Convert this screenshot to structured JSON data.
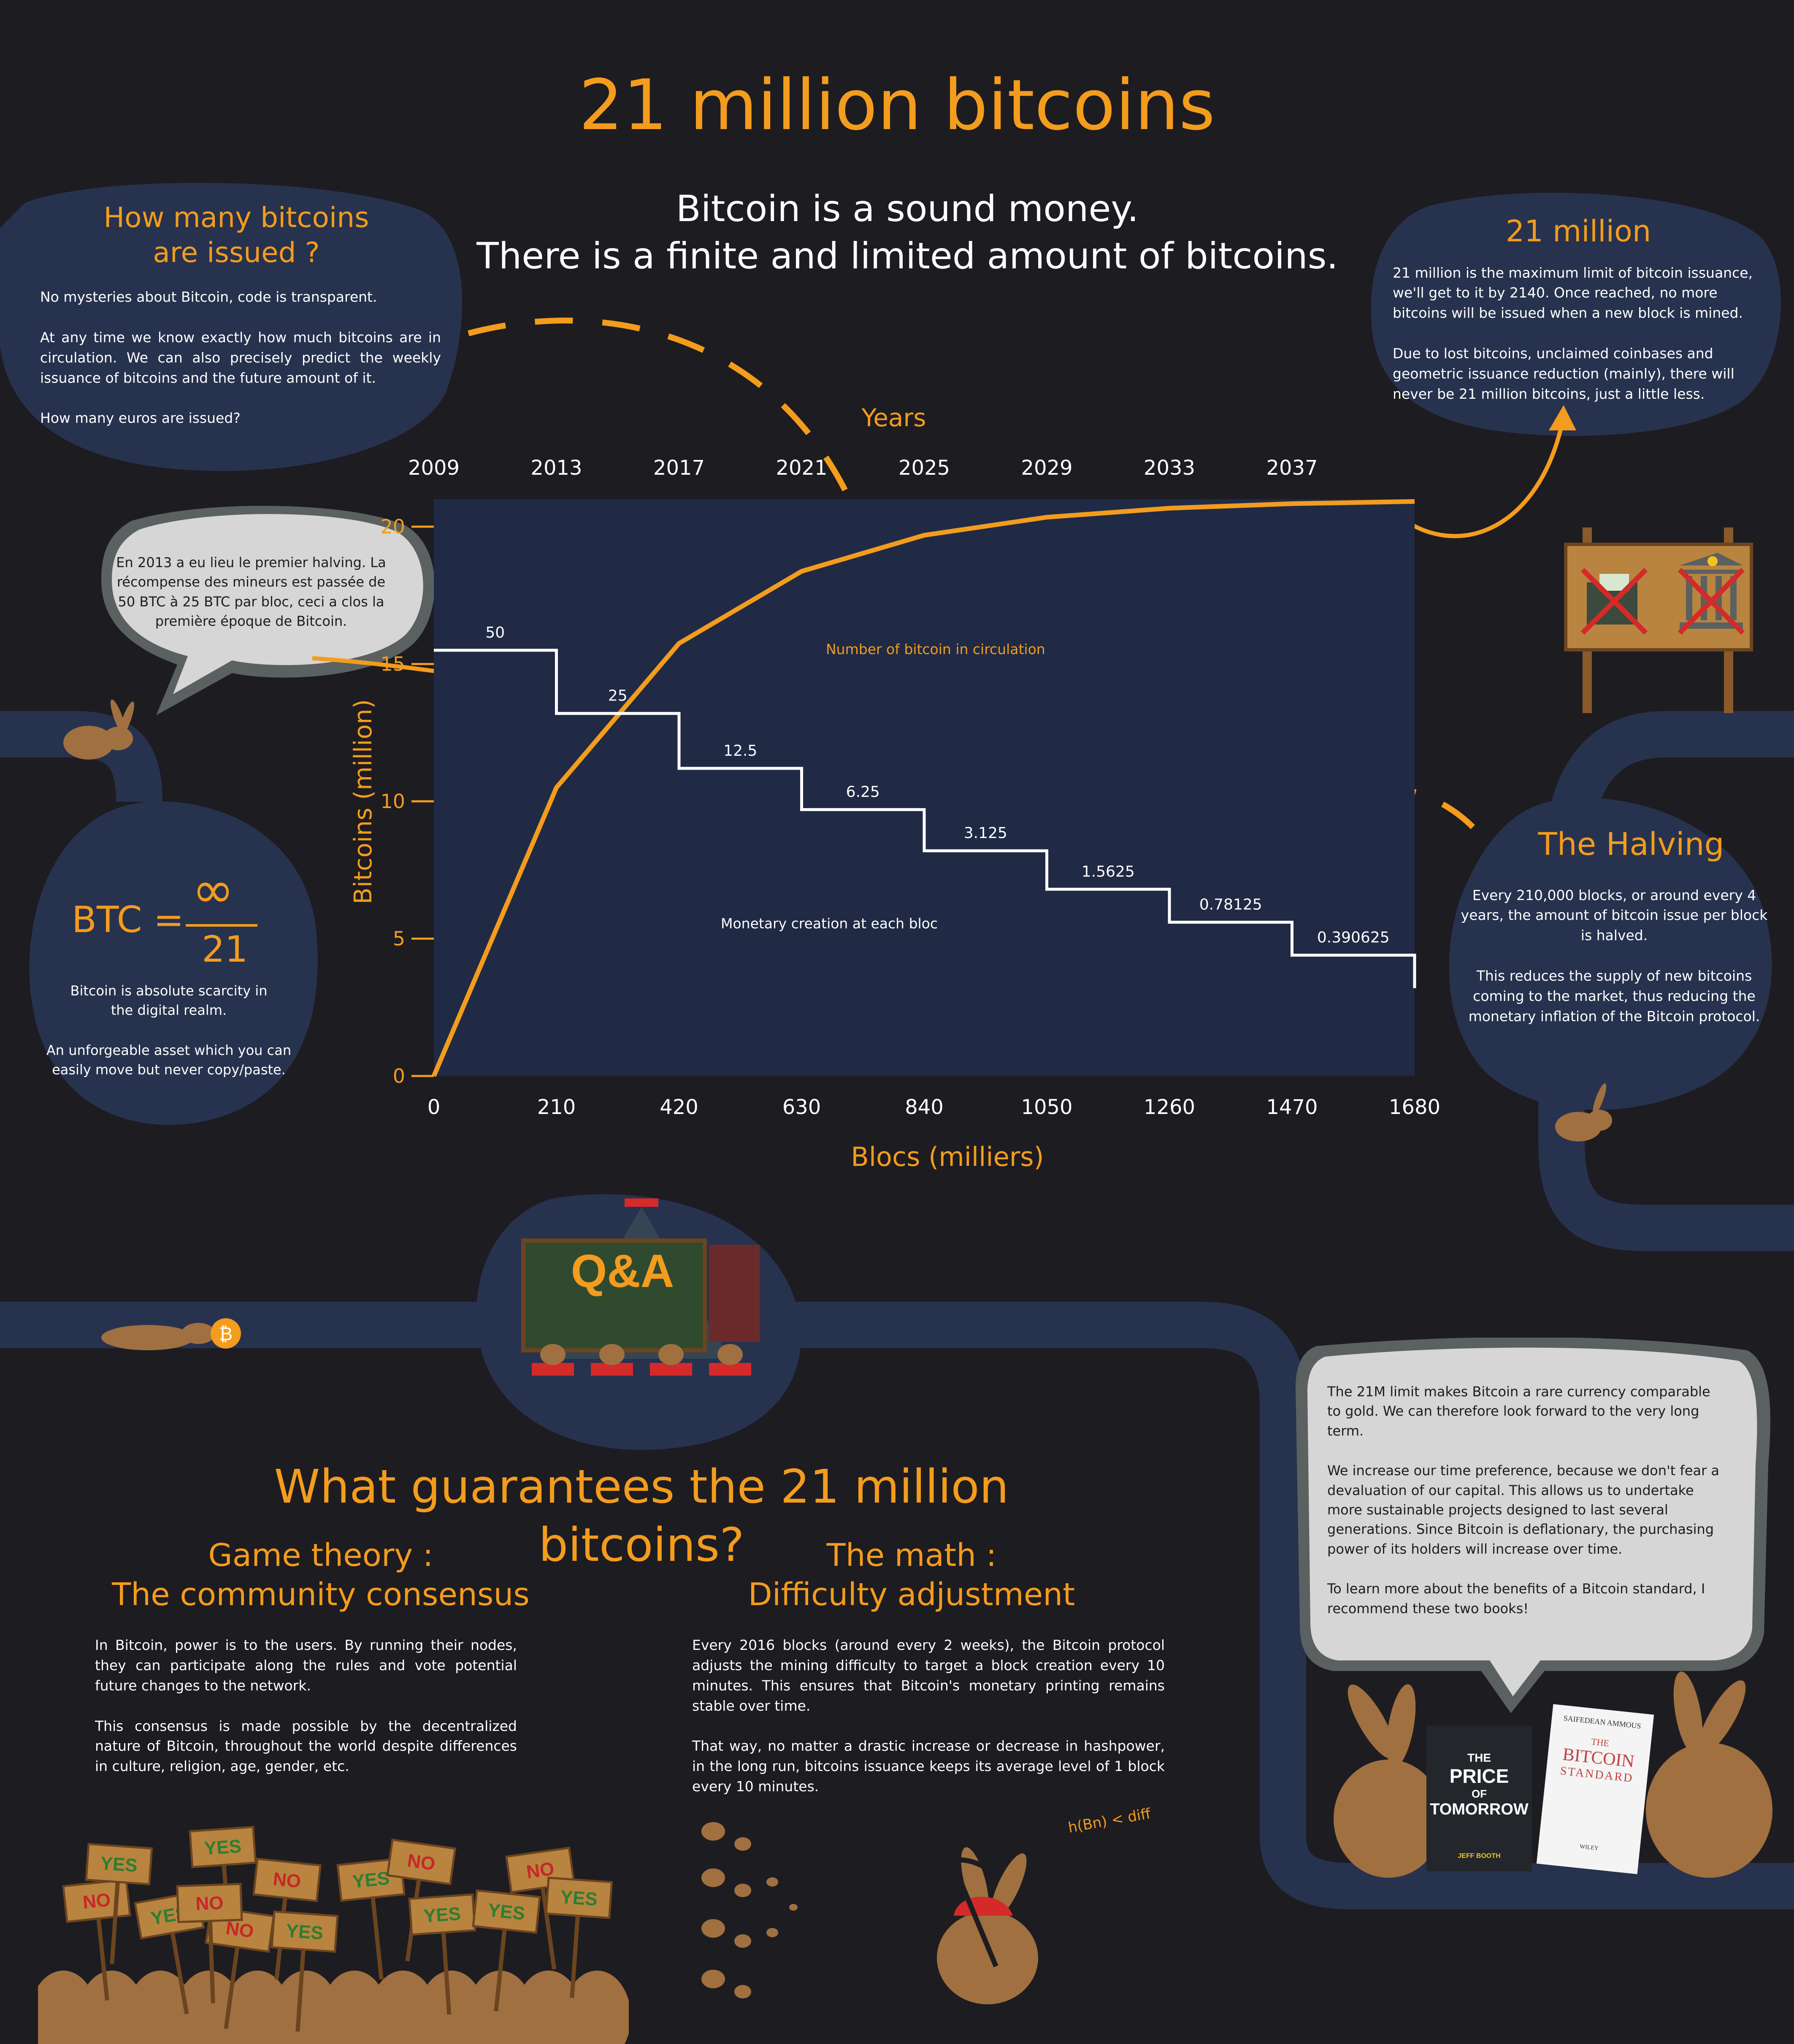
{
  "title": "21 million bitcoins",
  "subtitle_line1": "Bitcoin is a sound money.",
  "subtitle_line2": "There is a finite and limited amount of bitcoins.",
  "issued": {
    "heading_line1": "How many bitcoins",
    "heading_line2": "are issued ?",
    "p1": "No mysteries about Bitcoin, code is transparent.",
    "p2": "At any time we know exactly how much bitcoins are in circulation. We can also precisely predict the weekly issuance of bitcoins and the future amount of it.",
    "p3": "How many euros are issued?"
  },
  "million": {
    "heading": "21 million",
    "p1": "21 million is the maximum limit of bitcoin issuance, we'll get to it by 2140. Once reached, no more bitcoins will be issued when a new block is mined.",
    "p2": "Due to lost bitcoins, unclaimed coinbases and geometric issuance reduction (mainly), there will never be 21 million bitcoins, just a little less."
  },
  "first_halving_bubble": "En 2013 a eu lieu le premier halving. La récompense des mineurs est passée de 50 BTC à 25 BTC par bloc, ceci a clos la première époque de Bitcoin.",
  "btc_formula": {
    "lhs": "BTC =",
    "numerator": "∞",
    "denominator": "21",
    "p1": "Bitcoin is absolute scarcity in the digital realm.",
    "p2": "An unforgeable asset which you can easily move but never copy/paste."
  },
  "halving": {
    "heading": "The Halving",
    "p1": "Every 210,000 blocks, or around every 4 years, the amount of bitcoin issue per block is halved.",
    "p2": "This reduces the supply of new bitcoins coming to the market, thus reducing the monetary inflation of the Bitcoin protocol."
  },
  "chart_data": {
    "type": "line",
    "top_axis_label": "Years",
    "years": [
      "2009",
      "2013",
      "2017",
      "2021",
      "2025",
      "2029",
      "2033",
      "2037"
    ],
    "xlabel": "Blocs (milliers)",
    "ylabel": "Bitcoins (million)",
    "x_ticks": [
      0,
      210,
      420,
      630,
      840,
      1050,
      1260,
      1470,
      1680
    ],
    "y_ticks": [
      0,
      5,
      10,
      15,
      20
    ],
    "xlim": [
      0,
      1680
    ],
    "ylim": [
      0,
      21
    ],
    "series": [
      {
        "name": "Number of bitcoin in circulation",
        "color": "#f39c1d",
        "x": [
          0,
          210,
          420,
          630,
          840,
          1050,
          1260,
          1470,
          1680
        ],
        "y": [
          0,
          10.5,
          15.75,
          18.375,
          19.6875,
          20.34375,
          20.671875,
          20.8359,
          20.918
        ]
      },
      {
        "name": "Monetary creation at each bloc",
        "color": "#ffffff",
        "steps": [
          {
            "x0": 0,
            "x1": 210,
            "label": "50"
          },
          {
            "x0": 210,
            "x1": 420,
            "label": "25"
          },
          {
            "x0": 420,
            "x1": 630,
            "label": "12.5"
          },
          {
            "x0": 630,
            "x1": 840,
            "label": "6.25"
          },
          {
            "x0": 840,
            "x1": 1050,
            "label": "3.125"
          },
          {
            "x0": 1050,
            "x1": 1260,
            "label": "1.5625"
          },
          {
            "x0": 1260,
            "x1": 1470,
            "label": "0.78125"
          },
          {
            "x0": 1470,
            "x1": 1680,
            "label": "0.390625"
          }
        ],
        "step_heights_y": [
          15.5,
          13.2,
          11.2,
          9.7,
          8.2,
          6.8,
          5.6,
          4.4
        ]
      }
    ],
    "colors": {
      "background": "#1d1c21",
      "plot": "#202a45",
      "accent": "#f39c1d"
    }
  },
  "qa_label": "Q&A",
  "guarantees_heading": "What guarantees the 21 million bitcoins?",
  "game_theory": {
    "heading_line1": "Game theory :",
    "heading_line2": "The community consensus",
    "p1": "In Bitcoin, power is to the users. By running their nodes, they can participate along the rules and vote potential future changes to the network.",
    "p2": "This consensus is made possible by the decentralized nature of Bitcoin, throughout the world despite differences in culture, religion, age, gender, etc."
  },
  "math": {
    "heading_line1": "The math :",
    "heading_line2": "Difficulty adjustment",
    "p1": "Every 2016 blocks (around every 2 weeks), the Bitcoin protocol adjusts the mining difficulty to target a block creation every 10 minutes. This ensures that Bitcoin's monetary printing remains stable over time.",
    "p2": "That way, no matter a drastic increase or decrease in hashpower, in the long run, bitcoins issuance keeps its average level of 1 block every 10 minutes.",
    "formula": "h(Bn) < diff"
  },
  "books_bubble": {
    "p1": "The 21M limit makes Bitcoin a rare currency comparable to gold. We can therefore look forward to the very long term.",
    "p2": "We increase our time preference, because we don't fear a devaluation of our capital. This allows us to undertake more sustainable projects designed to last several generations. Since Bitcoin is deflationary, the purchasing power of its holders will increase over time.",
    "p3": "To learn more about the benefits of a Bitcoin standard, I recommend these two books!"
  },
  "book1": {
    "title_line1": "THE",
    "title_line2": "PRICE",
    "title_line3": "OF",
    "title_line4": "TOMORROW",
    "author": "JEFF BOOTH"
  },
  "book2": {
    "author": "SAIFEDEAN AMMOUS",
    "title_line1": "THE",
    "title_line2": "BITCOIN",
    "title_line3": "STANDARD",
    "publisher": "WILEY"
  },
  "signs": [
    "NO",
    "YES",
    "YES",
    "YES",
    "NO",
    "NO",
    "YES",
    "NO",
    "YES",
    "YES",
    "NO",
    "YES",
    "NO",
    "YES"
  ],
  "bitcoin_symbol": "₿"
}
